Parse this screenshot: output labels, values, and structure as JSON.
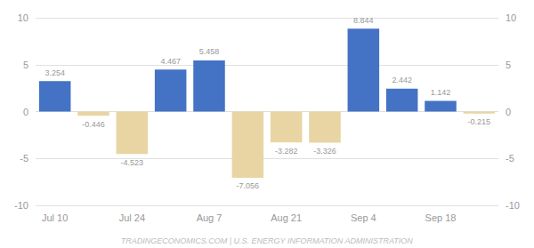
{
  "chart_data": {
    "type": "bar",
    "categories": [
      "Jul 10",
      null,
      "Jul 24",
      null,
      "Aug 7",
      null,
      "Aug 21",
      null,
      "Sep 4",
      null,
      "Sep 18",
      null
    ],
    "values": [
      3.254,
      -0.446,
      -4.523,
      4.467,
      5.458,
      -7.056,
      -3.282,
      -3.326,
      8.844,
      2.442,
      1.142,
      -0.215
    ],
    "colors": [
      "#4472C4",
      "#E8D5A3",
      "#E8D5A3",
      "#4472C4",
      "#4472C4",
      "#E8D5A3",
      "#E8D5A3",
      "#E8D5A3",
      "#4472C4",
      "#4472C4",
      "#4472C4",
      "#E8D5A3"
    ],
    "data_labels": true,
    "ylim": [
      -10,
      10
    ],
    "yticks": [
      -10,
      -5,
      0,
      5,
      10
    ],
    "y2lim": [
      -10,
      10
    ],
    "y2ticks": [
      -10,
      -5,
      0,
      5,
      10
    ],
    "grid": true,
    "annotations": [
      "TRADINGECONOMICS.COM | U.S. ENERGY INFORMATION ADMINISTRATION"
    ]
  }
}
